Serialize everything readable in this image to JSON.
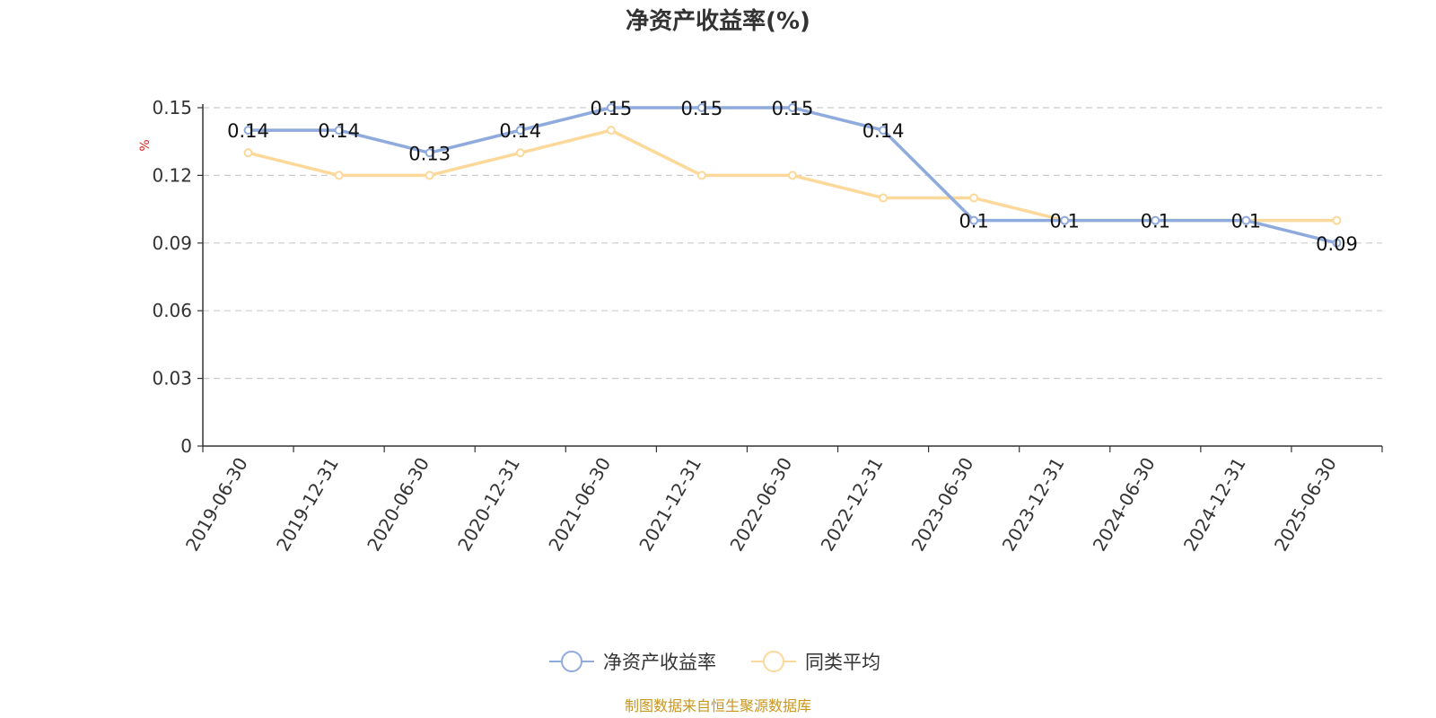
{
  "chart_data": {
    "type": "line",
    "title": "净资产收益率(%)",
    "ylabel": "%",
    "xlabel": "",
    "categories": [
      "2019-06-30",
      "2019-12-31",
      "2020-06-30",
      "2020-12-31",
      "2021-06-30",
      "2021-12-31",
      "2022-06-30",
      "2022-12-31",
      "2023-06-30",
      "2023-12-31",
      "2024-06-30",
      "2024-12-31",
      "2025-06-30"
    ],
    "ylim": [
      0,
      0.15
    ],
    "yticks": [
      "0",
      "0.03",
      "0.06",
      "0.09",
      "0.12",
      "0.15"
    ],
    "grid": true,
    "legend_position": "bottom",
    "series": [
      {
        "name": "净资产收益率",
        "color": "#8faadc",
        "values": [
          0.14,
          0.14,
          0.13,
          0.14,
          0.15,
          0.15,
          0.15,
          0.14,
          0.1,
          0.1,
          0.1,
          0.1,
          0.09
        ],
        "labels": [
          "0.14",
          "0.14",
          "0.13",
          "0.14",
          "0.15",
          "0.15",
          "0.15",
          "0.14",
          "0.1",
          "0.1",
          "0.1",
          "0.1",
          "0.09"
        ]
      },
      {
        "name": "同类平均",
        "color": "#fcd99a",
        "values": [
          0.13,
          0.12,
          0.12,
          0.13,
          0.14,
          0.12,
          0.12,
          0.11,
          0.11,
          0.1,
          0.1,
          0.1,
          0.1
        ]
      }
    ],
    "source": "制图数据来自恒生聚源数据库"
  }
}
